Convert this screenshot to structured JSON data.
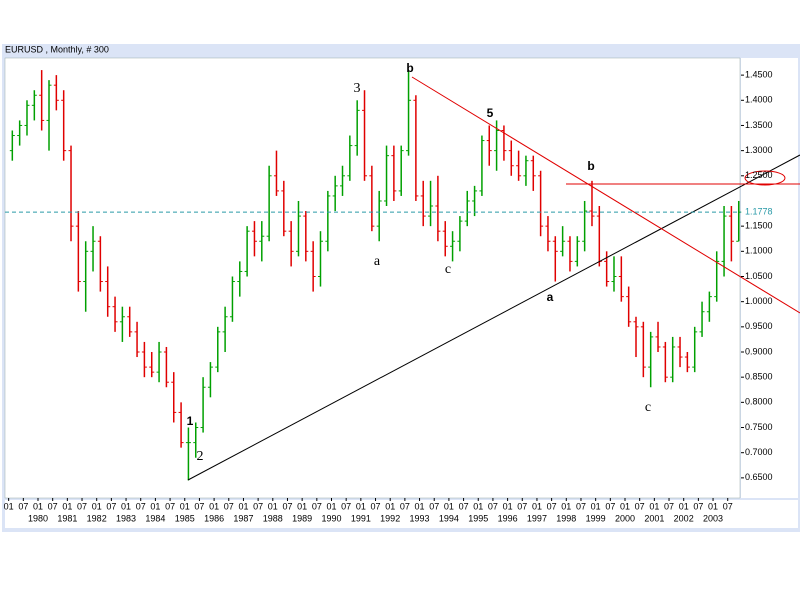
{
  "chart_data": {
    "type": "ohlc",
    "title": "EURUSD , Monthly, # 300",
    "x": [
      "1979-01",
      "1979-04",
      "1979-07",
      "1979-10",
      "1980-01",
      "1980-04",
      "1980-07",
      "1980-10",
      "1981-01",
      "1981-04",
      "1981-07",
      "1981-10",
      "1982-01",
      "1982-04",
      "1982-07",
      "1982-10",
      "1983-01",
      "1983-04",
      "1983-07",
      "1983-10",
      "1984-01",
      "1984-04",
      "1984-07",
      "1984-10",
      "1985-01",
      "1985-04",
      "1985-07",
      "1985-10",
      "1986-01",
      "1986-04",
      "1986-07",
      "1986-10",
      "1987-01",
      "1987-04",
      "1987-07",
      "1987-10",
      "1988-01",
      "1988-04",
      "1988-07",
      "1988-10",
      "1989-01",
      "1989-04",
      "1989-07",
      "1989-10",
      "1990-01",
      "1990-04",
      "1990-07",
      "1990-10",
      "1991-01",
      "1991-04",
      "1991-07",
      "1991-10",
      "1992-01",
      "1992-04",
      "1992-07",
      "1992-10",
      "1993-01",
      "1993-04",
      "1993-07",
      "1993-10",
      "1994-01",
      "1994-04",
      "1994-07",
      "1994-10",
      "1995-01",
      "1995-04",
      "1995-07",
      "1995-10",
      "1996-01",
      "1996-04",
      "1996-07",
      "1996-10",
      "1997-01",
      "1997-04",
      "1997-07",
      "1997-10",
      "1998-01",
      "1998-04",
      "1998-07",
      "1998-10",
      "1999-01",
      "1999-04",
      "1999-07",
      "1999-10",
      "2000-01",
      "2000-04",
      "2000-07",
      "2000-10",
      "2001-01",
      "2001-04",
      "2001-07",
      "2001-10",
      "2002-01",
      "2002-04",
      "2002-07",
      "2002-10",
      "2003-01",
      "2003-04",
      "2003-07",
      "2003-10"
    ],
    "open": [
      1.3,
      1.33,
      1.35,
      1.39,
      1.41,
      1.36,
      1.43,
      1.4,
      1.3,
      1.15,
      1.04,
      1.1,
      1.12,
      1.04,
      0.99,
      0.96,
      0.97,
      0.94,
      0.9,
      0.87,
      0.86,
      0.9,
      0.84,
      0.78,
      0.72,
      0.72,
      0.75,
      0.83,
      0.87,
      0.94,
      0.97,
      1.04,
      1.06,
      1.14,
      1.12,
      1.13,
      1.25,
      1.22,
      1.14,
      1.1,
      1.17,
      1.1,
      1.05,
      1.12,
      1.21,
      1.23,
      1.25,
      1.31,
      1.38,
      1.25,
      1.15,
      1.2,
      1.29,
      1.22,
      1.3,
      1.4,
      1.21,
      1.17,
      1.19,
      1.14,
      1.11,
      1.12,
      1.16,
      1.2,
      1.22,
      1.32,
      1.3,
      1.34,
      1.3,
      1.27,
      1.25,
      1.28,
      1.25,
      1.15,
      1.12,
      1.1,
      1.12,
      1.08,
      1.12,
      1.18,
      1.17,
      1.08,
      1.04,
      1.05,
      1.01,
      0.96,
      0.95,
      0.87,
      0.93,
      0.91,
      0.85,
      0.91,
      0.89,
      0.87,
      0.94,
      0.98,
      1.01,
      1.08,
      1.17,
      1.12
    ],
    "high": [
      1.34,
      1.36,
      1.4,
      1.42,
      1.46,
      1.44,
      1.45,
      1.42,
      1.31,
      1.18,
      1.12,
      1.15,
      1.13,
      1.07,
      1.01,
      0.99,
      0.99,
      0.96,
      0.92,
      0.9,
      0.92,
      0.91,
      0.86,
      0.8,
      0.75,
      0.76,
      0.85,
      0.88,
      0.95,
      0.99,
      1.05,
      1.08,
      1.15,
      1.16,
      1.16,
      1.27,
      1.3,
      1.24,
      1.16,
      1.2,
      1.18,
      1.12,
      1.14,
      1.22,
      1.25,
      1.27,
      1.33,
      1.4,
      1.42,
      1.27,
      1.22,
      1.31,
      1.31,
      1.31,
      1.46,
      1.41,
      1.24,
      1.24,
      1.25,
      1.16,
      1.14,
      1.17,
      1.22,
      1.23,
      1.33,
      1.35,
      1.36,
      1.35,
      1.32,
      1.3,
      1.29,
      1.29,
      1.26,
      1.17,
      1.13,
      1.15,
      1.13,
      1.13,
      1.2,
      1.24,
      1.19,
      1.1,
      1.09,
      1.09,
      1.03,
      0.97,
      0.96,
      0.94,
      0.96,
      0.92,
      0.93,
      0.93,
      0.9,
      0.95,
      1.0,
      1.02,
      1.1,
      1.19,
      1.19,
      1.2
    ],
    "low": [
      1.28,
      1.31,
      1.33,
      1.36,
      1.34,
      1.3,
      1.38,
      1.28,
      1.12,
      1.02,
      0.98,
      1.06,
      1.02,
      0.97,
      0.94,
      0.92,
      0.93,
      0.89,
      0.85,
      0.85,
      0.84,
      0.83,
      0.76,
      0.71,
      0.645,
      0.69,
      0.74,
      0.81,
      0.86,
      0.9,
      0.96,
      1.01,
      1.05,
      1.09,
      1.08,
      1.12,
      1.21,
      1.13,
      1.07,
      1.09,
      1.08,
      1.02,
      1.03,
      1.1,
      1.18,
      1.21,
      1.24,
      1.29,
      1.24,
      1.14,
      1.12,
      1.19,
      1.2,
      1.21,
      1.29,
      1.2,
      1.15,
      1.15,
      1.12,
      1.09,
      1.08,
      1.1,
      1.15,
      1.17,
      1.21,
      1.27,
      1.26,
      1.28,
      1.25,
      1.24,
      1.23,
      1.22,
      1.13,
      1.1,
      1.04,
      1.09,
      1.06,
      1.07,
      1.1,
      1.15,
      1.07,
      1.03,
      1.02,
      1.0,
      0.95,
      0.89,
      0.85,
      0.83,
      0.9,
      0.84,
      0.84,
      0.87,
      0.86,
      0.86,
      0.93,
      0.96,
      1.0,
      1.05,
      1.08,
      1.12
    ],
    "close": [
      1.33,
      1.35,
      1.39,
      1.41,
      1.36,
      1.43,
      1.4,
      1.3,
      1.15,
      1.04,
      1.1,
      1.12,
      1.04,
      0.99,
      0.96,
      0.97,
      0.94,
      0.9,
      0.87,
      0.86,
      0.9,
      0.84,
      0.78,
      0.72,
      0.72,
      0.75,
      0.83,
      0.87,
      0.94,
      0.97,
      1.04,
      1.06,
      1.14,
      1.12,
      1.13,
      1.25,
      1.22,
      1.14,
      1.1,
      1.17,
      1.1,
      1.05,
      1.12,
      1.21,
      1.23,
      1.25,
      1.31,
      1.38,
      1.25,
      1.15,
      1.2,
      1.29,
      1.22,
      1.3,
      1.4,
      1.21,
      1.17,
      1.19,
      1.14,
      1.11,
      1.12,
      1.16,
      1.2,
      1.22,
      1.32,
      1.3,
      1.34,
      1.3,
      1.27,
      1.25,
      1.28,
      1.25,
      1.15,
      1.12,
      1.1,
      1.12,
      1.08,
      1.12,
      1.18,
      1.17,
      1.08,
      1.04,
      1.05,
      1.01,
      0.96,
      0.95,
      0.87,
      0.93,
      0.91,
      0.85,
      0.91,
      0.89,
      0.87,
      0.94,
      0.98,
      1.01,
      1.08,
      1.17,
      1.12,
      1.1778
    ],
    "up_color": "#00a000",
    "down_color": "#e00000",
    "ylim": [
      0.61,
      1.484
    ],
    "yticks": [
      {
        "value": 0.65,
        "label": "0.6500"
      },
      {
        "value": 0.7,
        "label": "0.7000"
      },
      {
        "value": 0.75,
        "label": "0.7500"
      },
      {
        "value": 0.8,
        "label": "0.8000"
      },
      {
        "value": 0.85,
        "label": "0.8500"
      },
      {
        "value": 0.9,
        "label": "0.9000"
      },
      {
        "value": 0.95,
        "label": "0.9500"
      },
      {
        "value": 1,
        "label": "1.0000"
      },
      {
        "value": 1.05,
        "label": "1.0500"
      },
      {
        "value": 1.1,
        "label": "1.1000"
      },
      {
        "value": 1.15,
        "label": "1.1500"
      },
      {
        "value": 1.25,
        "label": "1.2500"
      },
      {
        "value": 1.3,
        "label": "1.3000"
      },
      {
        "value": 1.35,
        "label": "1.3500"
      },
      {
        "value": 1.4,
        "label": "1.4000"
      },
      {
        "value": 1.45,
        "label": "1.4500"
      }
    ],
    "last_price": {
      "value": 1.1778,
      "label": "1.1778"
    },
    "xticks": [
      {
        "value": "1979-01",
        "label": "01"
      },
      {
        "value": "1979-07",
        "label": "07"
      },
      {
        "value": "1980-01",
        "label": "01"
      },
      {
        "value": "1980-07",
        "label": "07"
      },
      {
        "value": "1981-01",
        "label": "01"
      },
      {
        "value": "1981-07",
        "label": "07"
      },
      {
        "value": "1982-01",
        "label": "01"
      },
      {
        "value": "1982-07",
        "label": "07"
      },
      {
        "value": "1983-01",
        "label": "01"
      },
      {
        "value": "1983-07",
        "label": "07"
      },
      {
        "value": "1984-01",
        "label": "01"
      },
      {
        "value": "1984-07",
        "label": "07"
      },
      {
        "value": "1985-01",
        "label": "01"
      },
      {
        "value": "1985-07",
        "label": "07"
      },
      {
        "value": "1986-01",
        "label": "01"
      },
      {
        "value": "1986-07",
        "label": "07"
      },
      {
        "value": "1987-01",
        "label": "01"
      },
      {
        "value": "1987-07",
        "label": "07"
      },
      {
        "value": "1988-01",
        "label": "01"
      },
      {
        "value": "1988-07",
        "label": "07"
      },
      {
        "value": "1989-01",
        "label": "01"
      },
      {
        "value": "1989-07",
        "label": "07"
      },
      {
        "value": "1990-01",
        "label": "01"
      },
      {
        "value": "1990-07",
        "label": "07"
      },
      {
        "value": "1991-01",
        "label": "01"
      },
      {
        "value": "1991-07",
        "label": "07"
      },
      {
        "value": "1992-01",
        "label": "01"
      },
      {
        "value": "1992-07",
        "label": "07"
      },
      {
        "value": "1993-01",
        "label": "01"
      },
      {
        "value": "1993-07",
        "label": "07"
      },
      {
        "value": "1994-01",
        "label": "01"
      },
      {
        "value": "1994-07",
        "label": "07"
      },
      {
        "value": "1995-01",
        "label": "01"
      },
      {
        "value": "1995-07",
        "label": "07"
      },
      {
        "value": "1996-01",
        "label": "01"
      },
      {
        "value": "1996-07",
        "label": "07"
      },
      {
        "value": "1997-01",
        "label": "01"
      },
      {
        "value": "1997-07",
        "label": "07"
      },
      {
        "value": "1998-01",
        "label": "01"
      },
      {
        "value": "1998-07",
        "label": "07"
      },
      {
        "value": "1999-01",
        "label": "01"
      },
      {
        "value": "1999-07",
        "label": "07"
      },
      {
        "value": "2000-01",
        "label": "01"
      },
      {
        "value": "2000-07",
        "label": "07"
      },
      {
        "value": "2001-01",
        "label": "01"
      },
      {
        "value": "2001-07",
        "label": "07"
      },
      {
        "value": "2002-01",
        "label": "01"
      },
      {
        "value": "2002-07",
        "label": "07"
      },
      {
        "value": "2003-01",
        "label": "01"
      },
      {
        "value": "2003-07",
        "label": "07"
      }
    ],
    "year_ticks": [
      {
        "value": "1980-01",
        "label": "1980"
      },
      {
        "value": "1981-01",
        "label": "1981"
      },
      {
        "value": "1982-01",
        "label": "1982"
      },
      {
        "value": "1983-01",
        "label": "1983"
      },
      {
        "value": "1984-01",
        "label": "1984"
      },
      {
        "value": "1985-01",
        "label": "1985"
      },
      {
        "value": "1986-01",
        "label": "1986"
      },
      {
        "value": "1987-01",
        "label": "1987"
      },
      {
        "value": "1988-01",
        "label": "1988"
      },
      {
        "value": "1989-01",
        "label": "1989"
      },
      {
        "value": "1990-01",
        "label": "1990"
      },
      {
        "value": "1991-01",
        "label": "1991"
      },
      {
        "value": "1992-01",
        "label": "1992"
      },
      {
        "value": "1993-01",
        "label": "1993"
      },
      {
        "value": "1994-01",
        "label": "1994"
      },
      {
        "value": "1995-01",
        "label": "1995"
      },
      {
        "value": "1996-01",
        "label": "1996"
      },
      {
        "value": "1997-01",
        "label": "1997"
      },
      {
        "value": "1998-01",
        "label": "1998"
      },
      {
        "value": "1999-01",
        "label": "1999"
      },
      {
        "value": "2000-01",
        "label": "2000"
      },
      {
        "value": "2001-01",
        "label": "2001"
      },
      {
        "value": "2002-01",
        "label": "2002"
      },
      {
        "value": "2003-01",
        "label": "2003"
      }
    ],
    "annotations": [
      "1",
      "2",
      "3",
      "a",
      "b",
      "c",
      "5",
      "a",
      "b",
      "c"
    ]
  }
}
